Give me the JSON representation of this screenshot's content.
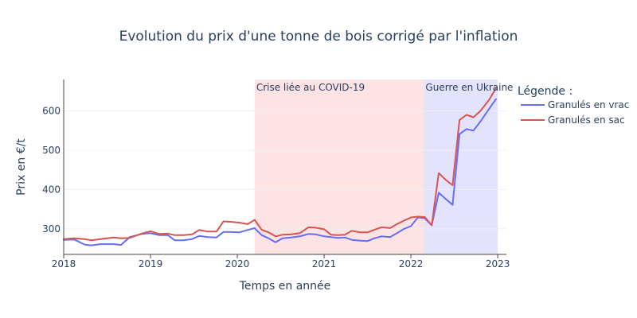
{
  "chart_data": {
    "type": "line",
    "title": "Evolution du prix d'une tonne de bois corrigé par l'inflation",
    "xlabel": "Temps en année",
    "ylabel": "Prix en €/t",
    "xlim": [
      2018.0,
      2023.1
    ],
    "ylim": [
      235,
      680
    ],
    "x_ticks": [
      {
        "value": 2018,
        "label": "2018"
      },
      {
        "value": 2019,
        "label": "2019"
      },
      {
        "value": 2020,
        "label": "2020"
      },
      {
        "value": 2021,
        "label": "2021"
      },
      {
        "value": 2022,
        "label": "2022"
      },
      {
        "value": 2023,
        "label": "2023"
      }
    ],
    "y_ticks": [
      {
        "value": 300,
        "label": "300"
      },
      {
        "value": 400,
        "label": "400"
      },
      {
        "value": 500,
        "label": "500"
      },
      {
        "value": 600,
        "label": "600"
      }
    ],
    "grid": true,
    "legend": {
      "title": "Légende :",
      "position": "right"
    },
    "regions": [
      {
        "label": "Crise liée au COVID-19",
        "x0": 2020.2,
        "x1": 2022.15,
        "color": "#fde3e3"
      },
      {
        "label": "Guerre en Ukraine",
        "x0": 2022.15,
        "x1": 2023.0,
        "color": "#e3e3fd"
      }
    ],
    "series": [
      {
        "name": "Granulés en vrac",
        "color": "#636efa",
        "points": [
          [
            2018.0,
            272
          ],
          [
            2018.12,
            273
          ],
          [
            2018.24,
            260
          ],
          [
            2018.32,
            258
          ],
          [
            2018.42,
            261
          ],
          [
            2018.58,
            261
          ],
          [
            2018.66,
            259
          ],
          [
            2018.76,
            279
          ],
          [
            2018.9,
            287
          ],
          [
            2019.0,
            289
          ],
          [
            2019.1,
            284
          ],
          [
            2019.2,
            284
          ],
          [
            2019.28,
            271
          ],
          [
            2019.38,
            271
          ],
          [
            2019.48,
            274
          ],
          [
            2019.56,
            282
          ],
          [
            2019.66,
            279
          ],
          [
            2019.76,
            278
          ],
          [
            2019.84,
            292
          ],
          [
            2019.92,
            292
          ],
          [
            2020.02,
            291
          ],
          [
            2020.12,
            297
          ],
          [
            2020.2,
            302
          ],
          [
            2020.28,
            284
          ],
          [
            2020.36,
            276
          ],
          [
            2020.44,
            266
          ],
          [
            2020.52,
            276
          ],
          [
            2020.62,
            278
          ],
          [
            2020.72,
            281
          ],
          [
            2020.82,
            287
          ],
          [
            2020.9,
            286
          ],
          [
            2021.0,
            281
          ],
          [
            2021.08,
            279
          ],
          [
            2021.16,
            277
          ],
          [
            2021.24,
            278
          ],
          [
            2021.32,
            272
          ],
          [
            2021.42,
            270
          ],
          [
            2021.5,
            269
          ],
          [
            2021.58,
            276
          ],
          [
            2021.66,
            281
          ],
          [
            2021.76,
            279
          ],
          [
            2021.84,
            289
          ],
          [
            2021.92,
            300
          ],
          [
            2022.0,
            307
          ],
          [
            2022.08,
            329
          ],
          [
            2022.16,
            327
          ],
          [
            2022.24,
            309
          ],
          [
            2022.32,
            392
          ],
          [
            2022.4,
            376
          ],
          [
            2022.48,
            361
          ],
          [
            2022.56,
            541
          ],
          [
            2022.64,
            554
          ],
          [
            2022.72,
            550
          ],
          [
            2022.8,
            573
          ],
          [
            2022.9,
            605
          ],
          [
            2022.98,
            630
          ]
        ]
      },
      {
        "name": "Granulés en sac",
        "color": "#d9534f",
        "points": [
          [
            2018.0,
            274
          ],
          [
            2018.12,
            276
          ],
          [
            2018.24,
            274
          ],
          [
            2018.32,
            271
          ],
          [
            2018.42,
            274
          ],
          [
            2018.58,
            278
          ],
          [
            2018.66,
            276
          ],
          [
            2018.76,
            277
          ],
          [
            2018.9,
            288
          ],
          [
            2019.0,
            294
          ],
          [
            2019.1,
            287
          ],
          [
            2019.2,
            288
          ],
          [
            2019.28,
            284
          ],
          [
            2019.38,
            284
          ],
          [
            2019.48,
            286
          ],
          [
            2019.56,
            297
          ],
          [
            2019.66,
            293
          ],
          [
            2019.76,
            293
          ],
          [
            2019.84,
            319
          ],
          [
            2019.92,
            318
          ],
          [
            2020.02,
            316
          ],
          [
            2020.12,
            312
          ],
          [
            2020.2,
            323
          ],
          [
            2020.28,
            298
          ],
          [
            2020.36,
            291
          ],
          [
            2020.44,
            281
          ],
          [
            2020.52,
            285
          ],
          [
            2020.62,
            286
          ],
          [
            2020.72,
            289
          ],
          [
            2020.82,
            304
          ],
          [
            2020.9,
            303
          ],
          [
            2021.0,
            299
          ],
          [
            2021.08,
            285
          ],
          [
            2021.16,
            284
          ],
          [
            2021.24,
            285
          ],
          [
            2021.32,
            295
          ],
          [
            2021.42,
            291
          ],
          [
            2021.5,
            291
          ],
          [
            2021.58,
            298
          ],
          [
            2021.66,
            304
          ],
          [
            2021.76,
            302
          ],
          [
            2021.84,
            312
          ],
          [
            2021.92,
            321
          ],
          [
            2022.0,
            329
          ],
          [
            2022.08,
            331
          ],
          [
            2022.16,
            330
          ],
          [
            2022.24,
            309
          ],
          [
            2022.32,
            442
          ],
          [
            2022.4,
            425
          ],
          [
            2022.48,
            411
          ],
          [
            2022.56,
            577
          ],
          [
            2022.64,
            590
          ],
          [
            2022.72,
            584
          ],
          [
            2022.8,
            600
          ],
          [
            2022.9,
            628
          ],
          [
            2022.98,
            658
          ]
        ]
      }
    ]
  }
}
